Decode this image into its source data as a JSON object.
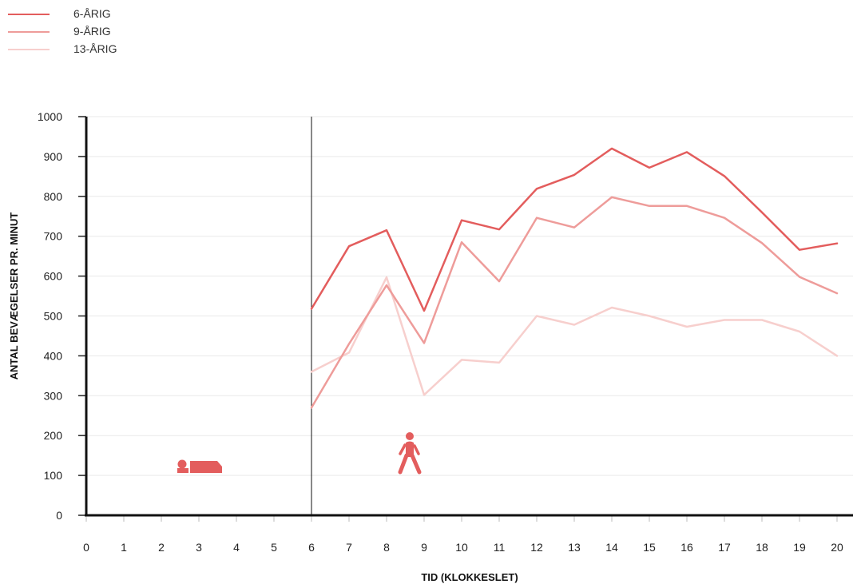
{
  "chart_data": {
    "type": "line",
    "xlabel": "TID (KLOKKESLET)",
    "ylabel": "ANTAL BEVÆGELSER PR. MINUT",
    "ylim": [
      0,
      1000
    ],
    "yticks": [
      0,
      100,
      200,
      300,
      400,
      500,
      600,
      700,
      800,
      900,
      1000
    ],
    "x_tick_labels": [
      "0",
      "1",
      "2",
      "3",
      "4",
      "5",
      "6",
      "7",
      "8",
      "9",
      "10",
      "11",
      "12",
      "13",
      "14",
      "15",
      "16",
      "17",
      "18",
      "19",
      "20"
    ],
    "x": [
      6,
      7,
      8,
      9,
      10,
      11,
      12,
      13,
      14,
      15,
      16,
      17,
      18,
      19,
      20
    ],
    "divider_at": 6,
    "grid": "horizontal",
    "legend_position": "top-left",
    "series": [
      {
        "name": "6-ÅRIG",
        "color": "#e35d5d",
        "values": [
          518,
          675,
          715,
          513,
          740,
          717,
          819,
          854,
          920,
          872,
          911,
          851,
          760,
          666,
          682
        ]
      },
      {
        "name": "9-ÅRIG",
        "color": "#ee9c9a",
        "values": [
          270,
          430,
          577,
          432,
          685,
          587,
          746,
          722,
          798,
          776,
          776,
          746,
          683,
          598,
          557
        ]
      },
      {
        "name": "13-ÅRIG",
        "color": "#f7cfcd",
        "values": [
          360,
          408,
          597,
          302,
          390,
          383,
          500,
          478,
          521,
          500,
          473,
          490,
          490,
          461,
          400
        ]
      }
    ],
    "icons": [
      {
        "name": "sleeping-person-icon",
        "color": "#e35d5d"
      },
      {
        "name": "walking-person-icon",
        "color": "#e35d5d"
      }
    ]
  }
}
